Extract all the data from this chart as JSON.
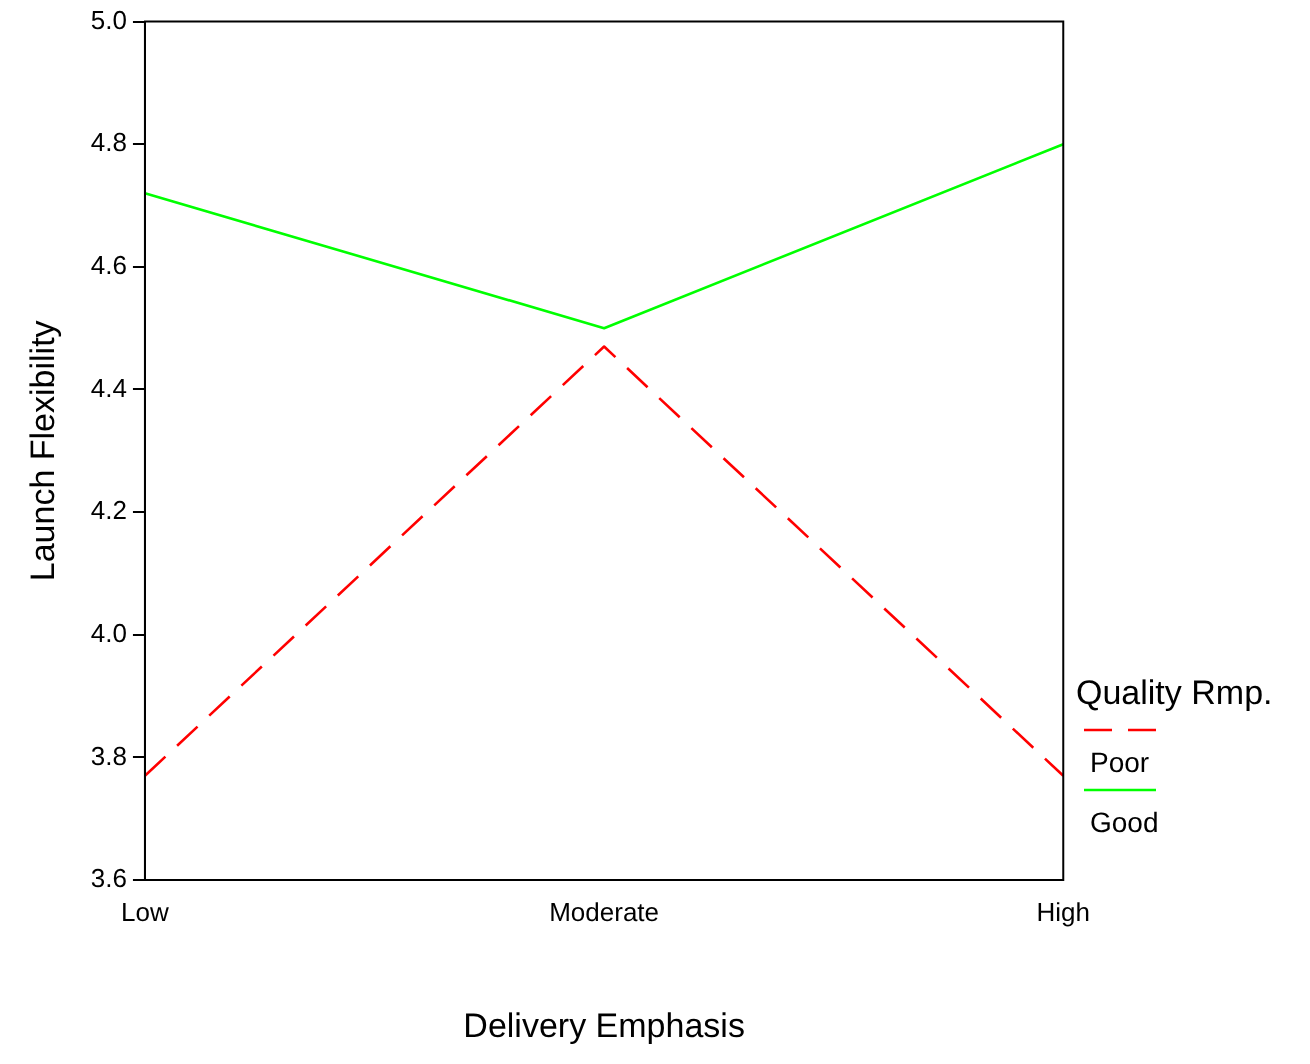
{
  "chart_data": {
    "type": "line",
    "xlabel": "Delivery Emphasis",
    "ylabel": "Launch Flexibility",
    "legend_title": "Quality Rmp.",
    "legend": "right",
    "marker": "none",
    "grid": false,
    "categories": [
      "Low",
      "Moderate",
      "High"
    ],
    "ylim": [
      3.6,
      5.0
    ],
    "yticks": [
      {
        "value": 3.6,
        "label": "3.6"
      },
      {
        "value": 3.8,
        "label": "3.8"
      },
      {
        "value": 4.0,
        "label": "4.0"
      },
      {
        "value": 4.2,
        "label": "4.2"
      },
      {
        "value": 4.4,
        "label": "4.4"
      },
      {
        "value": 4.6,
        "label": "4.6"
      },
      {
        "value": 4.8,
        "label": "4.8"
      },
      {
        "value": 5.0,
        "label": "5.0"
      }
    ],
    "series": [
      {
        "name": "Poor",
        "color": "#ff0000",
        "line_style": "dashed",
        "values": [
          3.77,
          4.47,
          3.77
        ]
      },
      {
        "name": "Good",
        "color": "#00ff00",
        "line_style": "solid",
        "values": [
          4.72,
          4.5,
          4.8
        ]
      }
    ]
  }
}
